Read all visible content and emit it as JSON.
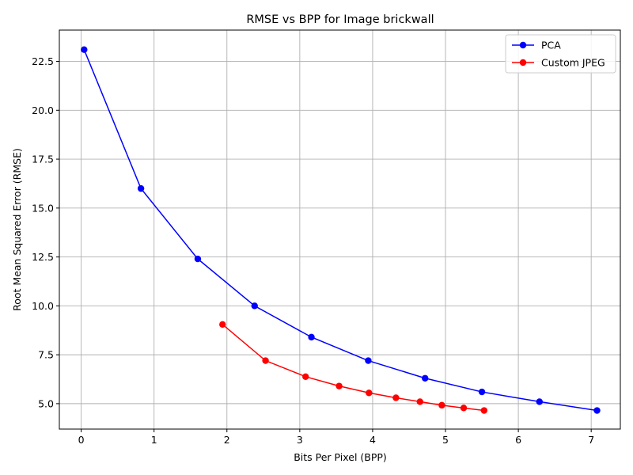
{
  "chart_data": {
    "type": "line",
    "title": "RMSE vs BPP for Image brickwall",
    "xlabel": "Bits Per Pixel (BPP)",
    "ylabel": "Root Mean Squared Error (RMSE)",
    "xlim": [
      -0.3,
      7.4
    ],
    "ylim": [
      3.7,
      24.1
    ],
    "xticks": [
      0,
      1,
      2,
      3,
      4,
      5,
      6,
      7
    ],
    "xtick_labels": [
      "0",
      "1",
      "2",
      "3",
      "4",
      "5",
      "6",
      "7"
    ],
    "yticks": [
      5.0,
      7.5,
      10.0,
      12.5,
      15.0,
      17.5,
      20.0,
      22.5
    ],
    "ytick_labels": [
      "5.0",
      "7.5",
      "10.0",
      "12.5",
      "15.0",
      "17.5",
      "20.0",
      "22.5"
    ],
    "grid": true,
    "legend_position": "top-right",
    "series": [
      {
        "name": "PCA",
        "color": "#0000ff",
        "x": [
          0.04,
          0.82,
          1.6,
          2.38,
          3.16,
          3.94,
          4.72,
          5.5,
          6.29,
          7.08
        ],
        "y": [
          23.1,
          16.0,
          12.4,
          10.0,
          8.4,
          7.2,
          6.3,
          5.6,
          5.1,
          4.65
        ]
      },
      {
        "name": "Custom JPEG",
        "color": "#ff0000",
        "x": [
          1.94,
          2.53,
          3.08,
          3.54,
          3.95,
          4.32,
          4.65,
          4.95,
          5.25,
          5.53
        ],
        "y": [
          9.05,
          7.2,
          6.38,
          5.9,
          5.55,
          5.3,
          5.1,
          4.92,
          4.78,
          4.65
        ]
      }
    ]
  }
}
